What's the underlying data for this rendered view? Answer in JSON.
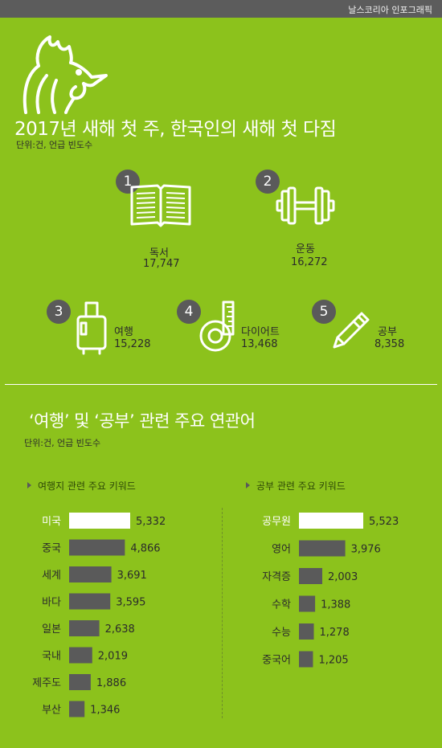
{
  "header": {
    "credit": "날스코리아 인포그래픽"
  },
  "title": "2017년 새해 첫 주, 한국인의 새해 첫 다짐",
  "unit_top": "단위:건, 언급 빈도수",
  "ranking": [
    {
      "rank": "1",
      "label": "독서",
      "value": "17,747",
      "icon": "book-icon"
    },
    {
      "rank": "2",
      "label": "운동",
      "value": "16,272",
      "icon": "dumbbell-icon"
    },
    {
      "rank": "3",
      "label": "여행",
      "value": "15,228",
      "icon": "suitcase-icon"
    },
    {
      "rank": "4",
      "label": "다이어트",
      "value": "13,468",
      "icon": "tape-measure-icon"
    },
    {
      "rank": "5",
      "label": "공부",
      "value": "8,358",
      "icon": "pencil-icon"
    }
  ],
  "subtitle": "‘여행’ 및 ‘공부’ 관련 주요 연관어",
  "unit_bottom": "단위:건, 언급 빈도수",
  "chart_data": [
    {
      "type": "bar",
      "title": "여행지 관련 주요 키워드",
      "categories": [
        "미국",
        "중국",
        "세계",
        "바다",
        "일본",
        "국내",
        "제주도",
        "부산"
      ],
      "values": [
        5332,
        4866,
        3691,
        3595,
        2638,
        2019,
        1886,
        1346
      ],
      "value_labels": [
        "5,332",
        "4,866",
        "3,691",
        "3,595",
        "2,638",
        "2,019",
        "1,886",
        "1,346"
      ],
      "highlight_index": 0,
      "colors": {
        "highlight": "#ffffff",
        "bar": "#5a5a5a"
      }
    },
    {
      "type": "bar",
      "title": "공부 관련 주요 키워드",
      "categories": [
        "공무원",
        "영어",
        "자격증",
        "수학",
        "수능",
        "중국어"
      ],
      "values": [
        5523,
        3976,
        2003,
        1388,
        1278,
        1205
      ],
      "value_labels": [
        "5,523",
        "3,976",
        "2,003",
        "1,388",
        "1,278",
        "1,205"
      ],
      "highlight_index": 0,
      "colors": {
        "highlight": "#ffffff",
        "bar": "#5a5a5a"
      }
    }
  ],
  "colors": {
    "background": "#8cc21c",
    "topbar": "#5c5c5c",
    "text": "#2b2b2b",
    "badge": "#5a5a5a"
  }
}
